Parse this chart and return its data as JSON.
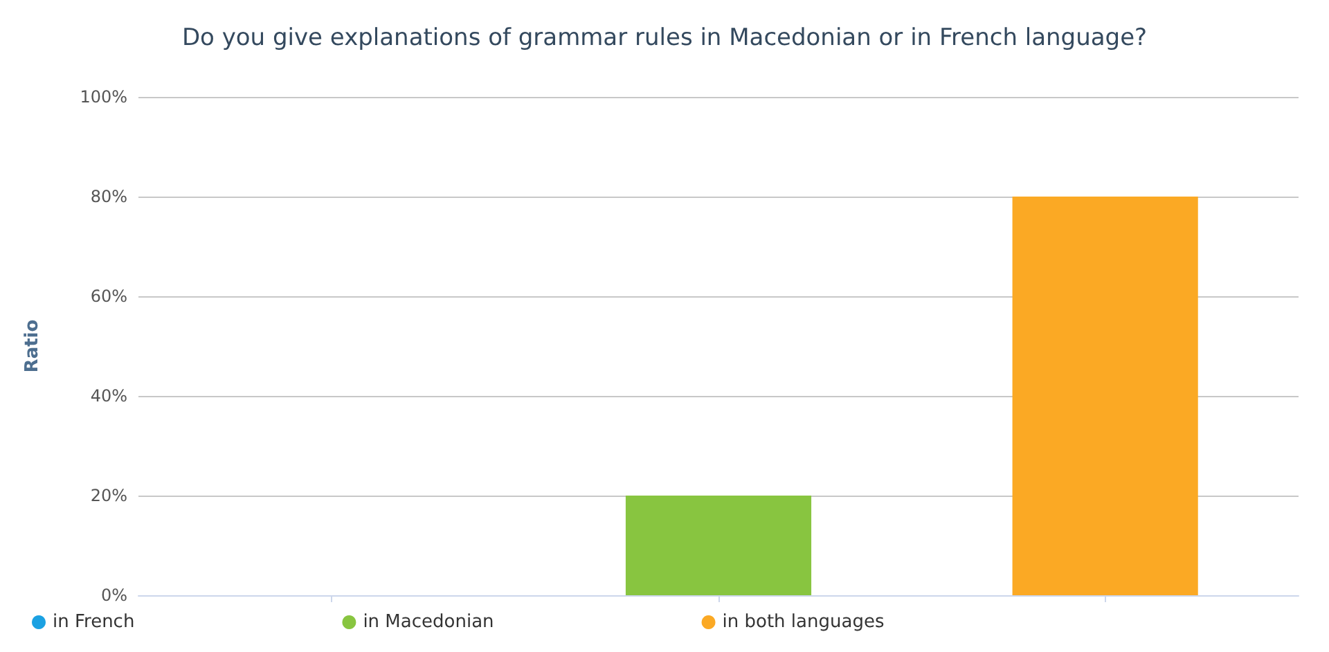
{
  "chart_data": {
    "type": "bar",
    "title": "Do you give explanations of grammar rules in Macedonian or in French language?",
    "ylabel": "Ratio",
    "categories": [
      null,
      null,
      null
    ],
    "series": [
      {
        "name": "in French",
        "color": "#1ba1e2",
        "values": [
          0,
          null,
          null
        ]
      },
      {
        "name": "in Macedonian",
        "color": "#88c540",
        "values": [
          null,
          20,
          null
        ]
      },
      {
        "name": "in both languages",
        "color": "#fba924",
        "values": [
          null,
          null,
          80
        ]
      }
    ],
    "ylim": [
      0,
      100
    ],
    "yticks": [
      {
        "value": 0,
        "label": "0%"
      },
      {
        "value": 20,
        "label": "20%"
      },
      {
        "value": 40,
        "label": "40%"
      },
      {
        "value": 60,
        "label": "60%"
      },
      {
        "value": 80,
        "label": "80%"
      },
      {
        "value": 100,
        "label": "100%"
      }
    ],
    "grid": "y",
    "legend": "bottom left"
  }
}
